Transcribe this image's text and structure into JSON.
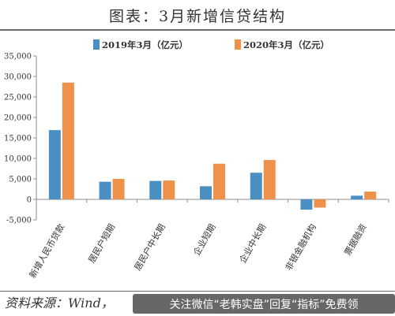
{
  "figure": {
    "title": "图表：3月新增信贷结构",
    "source": "资料来源：Wind，",
    "watermark": "关注微信“老韩实盘”回复“指标”免费领"
  },
  "chart_data": {
    "type": "bar",
    "categories": [
      "新增人民币贷款",
      "居民户短期",
      "居民户中长期",
      "企业短期",
      "企业中长期",
      "非银金融机构",
      "票据融资"
    ],
    "series": [
      {
        "name": "2019年3月（亿元）",
        "color": "#4a8fc2",
        "values": [
          16900,
          4300,
          4500,
          3200,
          6500,
          -2500,
          900
        ]
      },
      {
        "name": "2020年3月（亿元）",
        "color": "#f0914a",
        "values": [
          28500,
          5000,
          4600,
          8700,
          9600,
          -2000,
          1900
        ]
      }
    ],
    "yticks": [
      "35,000",
      "30,000",
      "25,000",
      "20,000",
      "15,000",
      "10,000",
      "5,000",
      "0",
      "-5,000"
    ],
    "ylim": [
      -5000,
      35000
    ],
    "legend_position": "top-center",
    "grid": false
  }
}
